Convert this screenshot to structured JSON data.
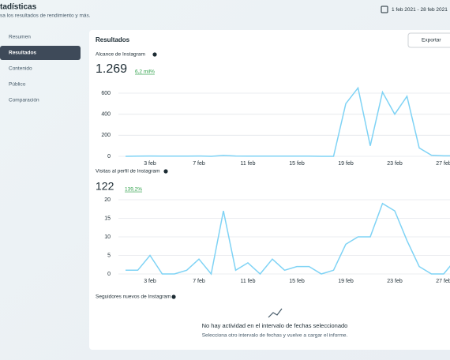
{
  "header": {
    "title": "tadísticas",
    "subtitle": "sa los resultados de rendimiento y más.",
    "date_range": "1 feb 2021 - 28 feb 2021"
  },
  "nav": [
    "Resumen",
    "Resultados",
    "Contenido",
    "Público",
    "Comparación"
  ],
  "card": {
    "title": "Resultados",
    "export": "Exportar",
    "metrics": [
      {
        "label": "Alcance de Instagram",
        "total": "1.269",
        "change": "6,2 mil%"
      },
      {
        "label": "Visitas al perfil de Instagram",
        "total": "122",
        "change": "139,2%"
      },
      {
        "label": "Seguidores nuevos de Instagram"
      }
    ],
    "empty_title": "No hay actividad en el intervalo de fechas seleccionado",
    "empty_text": "Selecciona otro intervalo de fechas y vuelve a cargar el informe."
  },
  "chart_data": [
    {
      "type": "line",
      "color": "#7fd3f5",
      "grid": true,
      "categories": [
        null,
        null,
        "3 feb",
        null,
        null,
        null,
        "7 feb",
        null,
        null,
        null,
        "11 feb",
        null,
        null,
        null,
        "15 feb",
        null,
        null,
        null,
        "19 feb",
        null,
        null,
        null,
        "23 feb",
        null,
        null,
        null,
        "27 feb",
        null
      ],
      "values": [
        0,
        2,
        3,
        2,
        2,
        2,
        3,
        0,
        8,
        3,
        2,
        2,
        2,
        2,
        2,
        2,
        0,
        0,
        500,
        650,
        100,
        610,
        400,
        570,
        80,
        10,
        5,
        5
      ],
      "ylim": [
        0,
        600
      ],
      "yticks": [
        0,
        200,
        400,
        600
      ]
    },
    {
      "type": "line",
      "color": "#7fd3f5",
      "grid": true,
      "categories": [
        null,
        null,
        "3 feb",
        null,
        null,
        null,
        "7 feb",
        null,
        null,
        null,
        "11 feb",
        null,
        null,
        null,
        "15 feb",
        null,
        null,
        null,
        "19 feb",
        null,
        null,
        null,
        "23 feb",
        null,
        null,
        null,
        "27 feb",
        null
      ],
      "values": [
        1,
        1,
        5,
        0,
        0,
        1,
        4,
        0,
        17,
        1,
        3,
        0,
        4,
        1,
        2,
        2,
        0,
        1,
        8,
        10,
        10,
        19,
        17,
        9,
        2,
        0,
        0,
        4
      ],
      "ylim": [
        0,
        20
      ],
      "yticks": [
        0,
        5,
        10,
        15,
        20
      ]
    }
  ]
}
